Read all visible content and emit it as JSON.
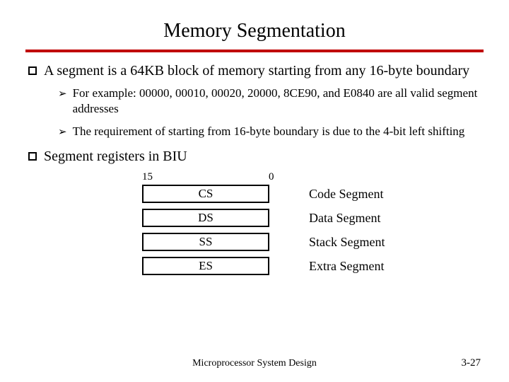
{
  "title": "Memory Segmentation",
  "ruleColor": "#c00000",
  "bullets": [
    {
      "text": "A segment is a 64KB block of memory starting from any 16-byte boundary",
      "subs": [
        "For example: 00000, 00010, 00020, 20000, 8CE90, and E0840  are all valid segment addresses",
        "The requirement of starting from 16-byte boundary is due to the 4-bit left shifting"
      ]
    },
    {
      "text": "Segment registers in BIU",
      "subs": []
    }
  ],
  "axis": {
    "high": "15",
    "low": "0"
  },
  "registers": [
    {
      "code": "CS",
      "label": "Code Segment"
    },
    {
      "code": "DS",
      "label": "Data Segment"
    },
    {
      "code": "SS",
      "label": "Stack Segment"
    },
    {
      "code": "ES",
      "label": "Extra Segment"
    }
  ],
  "footer": "Microprocessor System Design",
  "page": "3-27"
}
